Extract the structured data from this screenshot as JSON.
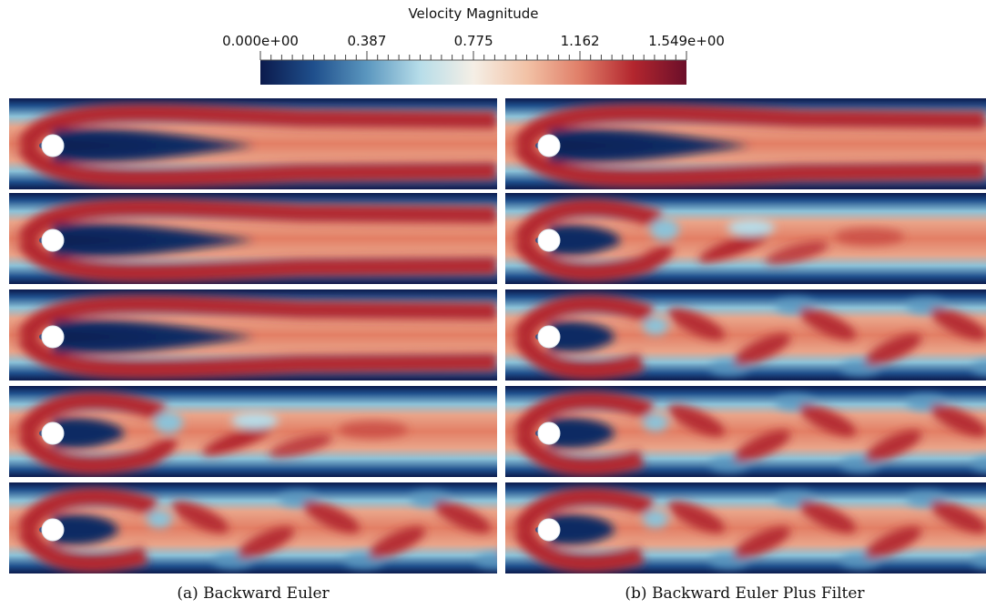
{
  "colorbar": {
    "title": "Velocity Magnitude",
    "min": 0.0,
    "max": 1.549,
    "tick_labels": [
      "0.000e+00",
      "0.387",
      "0.775",
      "1.162",
      "1.549e+00"
    ],
    "tick_values": [
      0.0,
      0.387,
      0.775,
      1.162,
      1.549
    ],
    "colormap": [
      "#0b1a4c",
      "#1f4f8c",
      "#5b97bf",
      "#b7dde9",
      "#f5efe6",
      "#f2c2a6",
      "#e07e68",
      "#b3262e",
      "#6b0f2a"
    ]
  },
  "columns": [
    {
      "caption": "(a) Backward Euler",
      "rows": [
        "steady",
        "steady",
        "steady",
        "transition",
        "vortex-street"
      ]
    },
    {
      "caption": "(b) Backward Euler Plus Filter",
      "rows": [
        "steady",
        "transition",
        "vortex-street",
        "vortex-street",
        "vortex-street"
      ]
    }
  ],
  "colors": {
    "wall": "#0b1a4c",
    "core": "#e37f65",
    "shear": "#b3262e",
    "wake": "#0f2a63",
    "cylinder": "#ffffff"
  }
}
